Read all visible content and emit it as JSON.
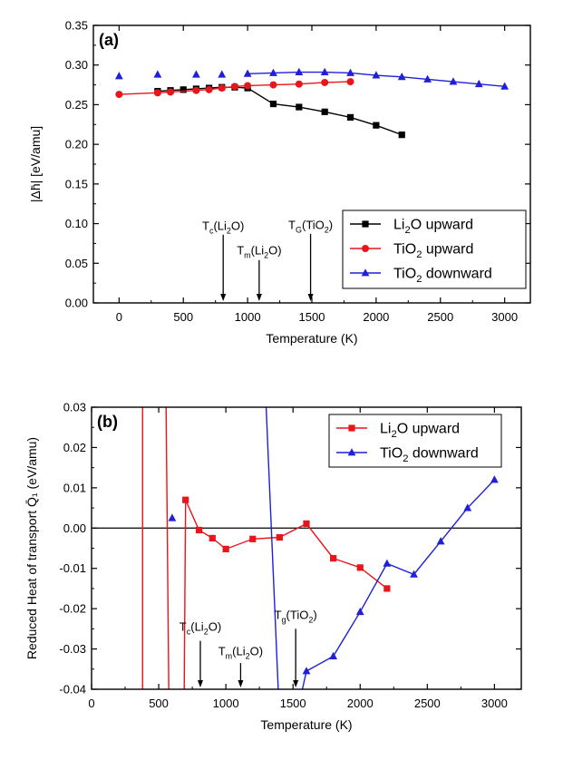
{
  "chart_data": [
    {
      "type": "line",
      "panel_label": "(a)",
      "xlabel": "Temperature (K)",
      "ylabel": "|Δh̄| [eV/amu]",
      "xlim": [
        -200,
        3200
      ],
      "ylim": [
        0.0,
        0.35
      ],
      "x_ticks": [
        0,
        500,
        1000,
        1500,
        2000,
        2500,
        3000
      ],
      "y_ticks": [
        0.0,
        0.05,
        0.1,
        0.15,
        0.2,
        0.25,
        0.3,
        0.35
      ],
      "y_tick_labels": [
        "0.00",
        "0.05",
        "0.10",
        "0.15",
        "0.20",
        "0.25",
        "0.30",
        "0.35"
      ],
      "legend_position": "bottom-right",
      "series": [
        {
          "name": "Li2O upward",
          "color": "#000000",
          "marker": "square",
          "points": [
            [
              300,
              0.267
            ],
            [
              400,
              0.268
            ],
            [
              500,
              0.269
            ],
            [
              600,
              0.27
            ],
            [
              700,
              0.271
            ],
            [
              800,
              0.272
            ],
            [
              900,
              0.272
            ],
            [
              1000,
              0.271
            ],
            [
              1200,
              0.251
            ],
            [
              1400,
              0.247
            ],
            [
              1600,
              0.241
            ],
            [
              1800,
              0.234
            ],
            [
              2000,
              0.224
            ],
            [
              2200,
              0.212
            ]
          ]
        },
        {
          "name": "TiO2 upward",
          "color": "#e8151b",
          "marker": "circle",
          "points": [
            [
              0,
              0.263
            ],
            [
              300,
              0.265
            ],
            [
              400,
              0.266
            ],
            [
              600,
              0.268
            ],
            [
              700,
              0.269
            ],
            [
              800,
              0.271
            ],
            [
              900,
              0.273
            ],
            [
              1000,
              0.274
            ],
            [
              1200,
              0.275
            ],
            [
              1400,
              0.276
            ],
            [
              1600,
              0.278
            ],
            [
              1800,
              0.279
            ]
          ]
        },
        {
          "name": "TiO2 downward",
          "color": "#1f1fdc",
          "marker": "triangle",
          "points": [
            [
              0,
              0.286
            ],
            [
              300,
              0.288
            ],
            [
              600,
              0.288
            ],
            [
              800,
              0.288
            ],
            [
              1000,
              0.289
            ],
            [
              1200,
              0.29
            ],
            [
              1400,
              0.291
            ],
            [
              1600,
              0.291
            ],
            [
              1800,
              0.29
            ],
            [
              2000,
              0.287
            ],
            [
              2200,
              0.285
            ],
            [
              2400,
              0.282
            ],
            [
              2600,
              0.279
            ],
            [
              2800,
              0.276
            ],
            [
              3000,
              0.273
            ]
          ],
          "line_from_x": 1000
        }
      ],
      "annotations": [
        {
          "base": "T",
          "sub": "c",
          "paren_pre": "(Li",
          "paren_sub": "2",
          "paren_post": "O)",
          "x": 810,
          "label_y": 0.092,
          "arrow_from": 0.086,
          "arrow_to": 0.0
        },
        {
          "base": "T",
          "sub": "m",
          "paren_pre": "(Li",
          "paren_sub": "2",
          "paren_post": "O)",
          "x": 1090,
          "label_y": 0.061,
          "arrow_from": 0.054,
          "arrow_to": 0.0
        },
        {
          "base": "T",
          "sub": "G",
          "paren_pre": "(TiO",
          "paren_sub": "2",
          "paren_post": ")",
          "x": 1490,
          "label_y": 0.093,
          "arrow_from": 0.087,
          "arrow_to": 0.0
        }
      ]
    },
    {
      "type": "line",
      "panel_label": "(b)",
      "xlabel": "Temperature (K)",
      "ylabel": "Reduced Heat of transport Q̄₁ (eV/amu)",
      "xlim": [
        0,
        3200
      ],
      "ylim": [
        -0.04,
        0.03
      ],
      "x_ticks": [
        0,
        500,
        1000,
        1500,
        2000,
        2500,
        3000
      ],
      "y_ticks": [
        -0.04,
        -0.03,
        -0.02,
        -0.01,
        0.0,
        0.01,
        0.02,
        0.03
      ],
      "y_tick_labels": [
        "-0.04",
        "-0.03",
        "-0.02",
        "-0.01",
        "0.00",
        "0.01",
        "0.02",
        "0.03"
      ],
      "zero_line": true,
      "legend_position": "top-right",
      "series": [
        {
          "name": "Li2O upward",
          "color": "#e8151b",
          "marker": "square",
          "points": [
            [
              700,
              0.007
            ],
            [
              800,
              -0.0005
            ],
            [
              900,
              -0.0025
            ],
            [
              1000,
              -0.0052
            ],
            [
              1200,
              -0.0027
            ],
            [
              1400,
              -0.0023
            ],
            [
              1600,
              0.0011
            ],
            [
              1800,
              -0.0075
            ],
            [
              2000,
              -0.0098
            ],
            [
              2200,
              -0.015
            ]
          ],
          "divergent_lines": [
            [
              [
                380,
                -0.04
              ],
              [
                380,
                0.03
              ]
            ],
            [
              [
                555,
                0.03
              ],
              [
                575,
                -0.04
              ]
            ],
            [
              [
                690,
                -0.04
              ],
              [
                700,
                0.007
              ]
            ]
          ]
        },
        {
          "name": "TiO2 downward",
          "color": "#1f1fdc",
          "marker": "triangle",
          "points": [
            [
              600,
              0.0025
            ],
            [
              1600,
              -0.0355
            ],
            [
              1800,
              -0.0318
            ],
            [
              2000,
              -0.0208
            ],
            [
              2200,
              -0.0088
            ],
            [
              2400,
              -0.0115
            ],
            [
              2600,
              -0.0033
            ],
            [
              2800,
              0.005
            ],
            [
              3000,
              0.012
            ]
          ],
          "divergent_lines": [
            [
              [
                1300,
                0.03
              ],
              [
                1390,
                -0.04
              ]
            ],
            [
              [
                1570,
                -0.04
              ],
              [
                1600,
                -0.0355
              ]
            ]
          ]
        }
      ],
      "annotations": [
        {
          "base": "T",
          "sub": "c",
          "paren_pre": "(Li",
          "paren_sub": "2",
          "paren_post": "O)",
          "x": 810,
          "label_y": -0.0255,
          "arrow_from": -0.028,
          "arrow_to": -0.04
        },
        {
          "base": "T",
          "sub": "m",
          "paren_pre": "(Li",
          "paren_sub": "2",
          "paren_post": "O)",
          "x": 1110,
          "label_y": -0.0316,
          "arrow_from": -0.0335,
          "arrow_to": -0.04
        },
        {
          "base": "T",
          "sub": "g",
          "paren_pre": "(TiO",
          "paren_sub": "2",
          "paren_post": ")",
          "x": 1520,
          "label_y": -0.0225,
          "arrow_from": -0.025,
          "arrow_to": -0.04
        }
      ]
    }
  ]
}
